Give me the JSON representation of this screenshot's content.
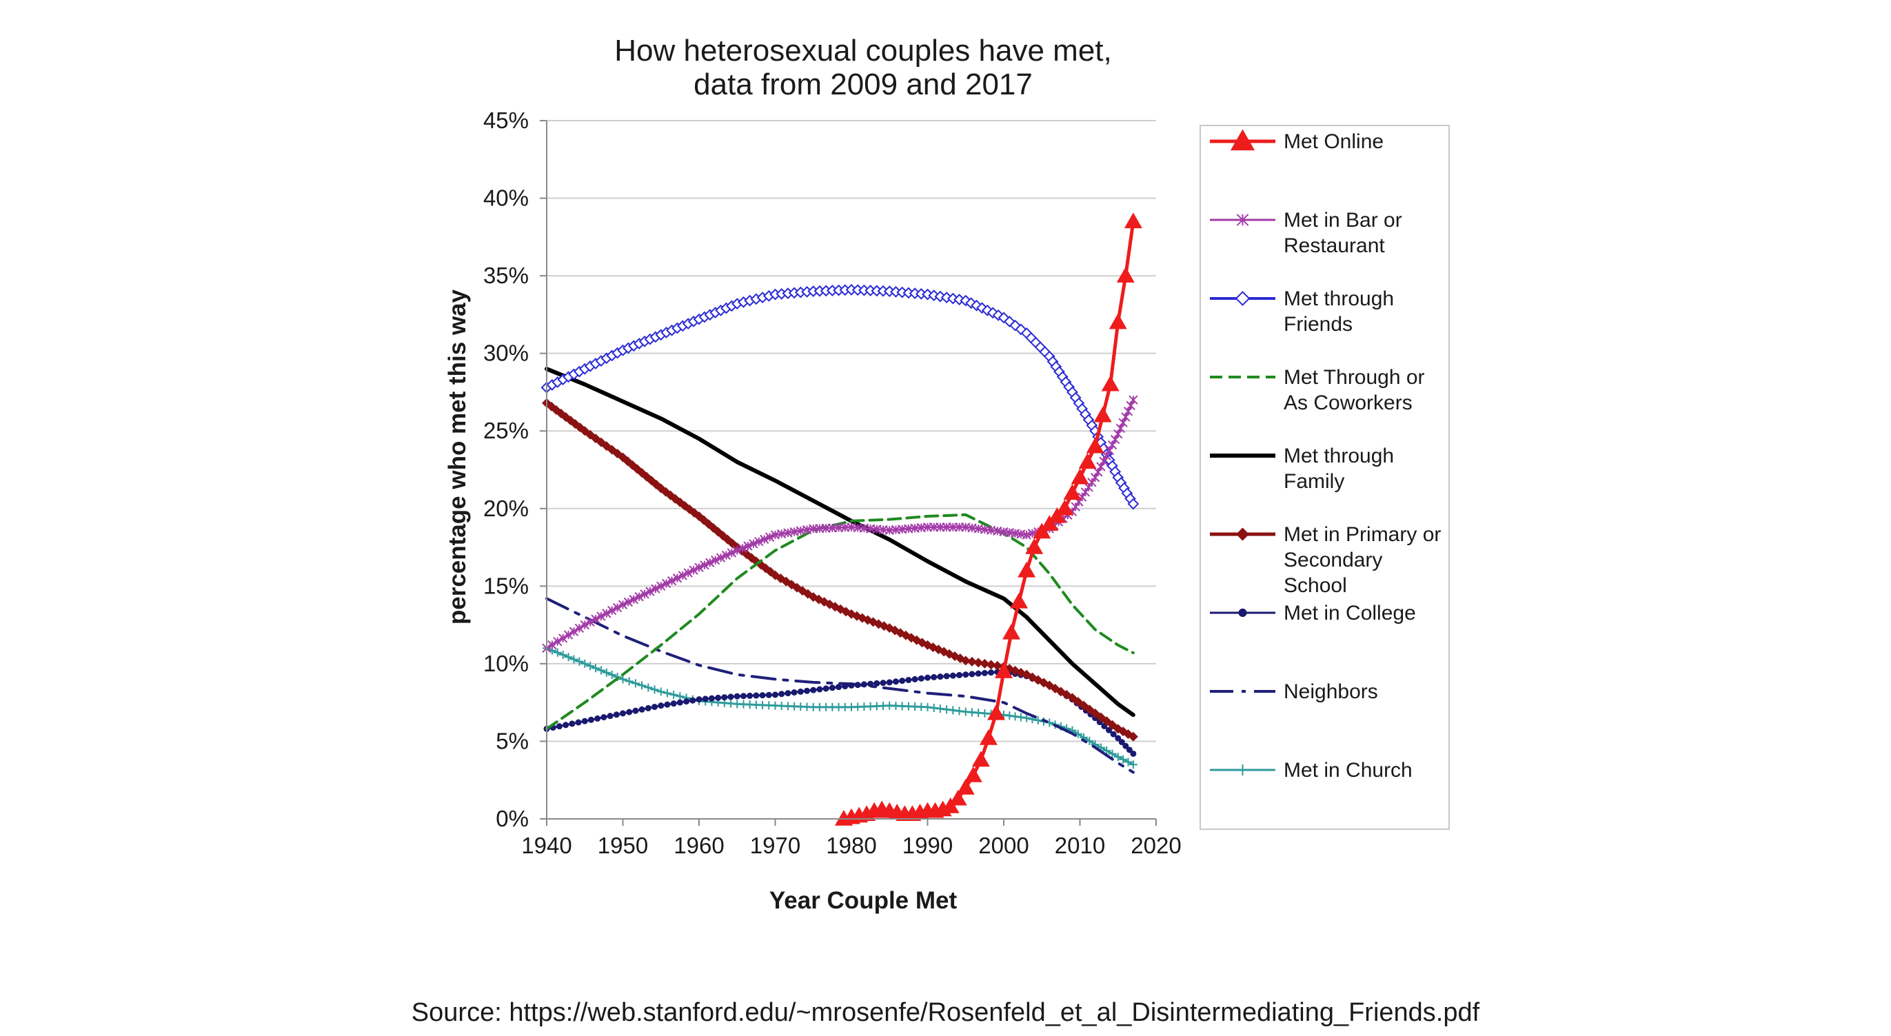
{
  "chart_data": {
    "type": "line",
    "title": [
      "How heterosexual couples have met,",
      "data from 2009 and 2017"
    ],
    "xlabel": "Year Couple Met",
    "ylabel": "percentage who met this way",
    "xlim": [
      1940,
      2020
    ],
    "ylim": [
      0,
      45
    ],
    "xticks": [
      1940,
      1950,
      1960,
      1970,
      1980,
      1990,
      2000,
      2010,
      2020
    ],
    "xtick_labels": [
      "1940",
      "1950",
      "1960",
      "1970",
      "1980",
      "1990",
      "2000",
      "2010",
      "2020"
    ],
    "yticks": [
      0,
      5,
      10,
      15,
      20,
      25,
      30,
      35,
      40,
      45
    ],
    "ytick_labels": [
      "0%",
      "5%",
      "10%",
      "15%",
      "20%",
      "25%",
      "30%",
      "35%",
      "40%",
      "45%"
    ],
    "grid": "horizontal",
    "legend_position": "right",
    "series": [
      {
        "name": "Met Online",
        "legend": [
          "Met Online"
        ],
        "color": "#ee1c1c",
        "style": "solid",
        "marker": "triangle",
        "width": 5,
        "x": [
          1979,
          1980,
          1981,
          1982,
          1983,
          1984,
          1985,
          1986,
          1987,
          1988,
          1989,
          1990,
          1991,
          1992,
          1993,
          1994,
          1995,
          1996,
          1997,
          1998,
          1999,
          2000,
          2001,
          2002,
          2003,
          2004,
          2005,
          2006,
          2007,
          2008,
          2009,
          2010,
          2011,
          2012,
          2013,
          2014,
          2015,
          2016,
          2017
        ],
        "y": [
          0,
          0.1,
          0.2,
          0.3,
          0.5,
          0.6,
          0.5,
          0.4,
          0.3,
          0.3,
          0.4,
          0.5,
          0.5,
          0.6,
          0.8,
          1.3,
          2,
          2.8,
          3.8,
          5.2,
          6.8,
          9.5,
          12,
          14,
          16,
          17.5,
          18.5,
          19,
          19.5,
          20,
          21,
          22,
          23,
          24,
          26,
          28,
          32,
          35,
          38.5
        ]
      },
      {
        "name": "Met in Bar or Restaurant",
        "legend": [
          "Met in Bar or",
          "Restaurant"
        ],
        "color": "#a33ca8",
        "style": "solid",
        "marker": "star",
        "width": 3,
        "x": [
          1940,
          1945,
          1950,
          1955,
          1960,
          1965,
          1970,
          1975,
          1980,
          1985,
          1990,
          1995,
          2000,
          2003,
          2006,
          2009,
          2012,
          2015,
          2017
        ],
        "y": [
          11,
          12.5,
          13.8,
          15,
          16.2,
          17.3,
          18.3,
          18.7,
          18.8,
          18.6,
          18.8,
          18.8,
          18.5,
          18.3,
          18.7,
          19.8,
          22,
          24.8,
          27
        ]
      },
      {
        "name": "Met through Friends",
        "legend": [
          "Met through",
          "Friends"
        ],
        "color": "#2b2bd4",
        "style": "solid",
        "marker": "diamond-open",
        "width": 4,
        "x": [
          1940,
          1945,
          1950,
          1955,
          1960,
          1965,
          1970,
          1975,
          1980,
          1985,
          1990,
          1995,
          2000,
          2003,
          2006,
          2009,
          2012,
          2015,
          2017
        ],
        "y": [
          27.8,
          29,
          30.2,
          31.2,
          32.2,
          33.2,
          33.8,
          34,
          34.1,
          34,
          33.8,
          33.4,
          32.3,
          31.3,
          29.8,
          27.5,
          25,
          22,
          20.3
        ]
      },
      {
        "name": "Met Through or As Coworkers",
        "legend": [
          "Met Through or",
          "As Coworkers"
        ],
        "color": "#1f8a1f",
        "style": "dashed",
        "marker": "none",
        "width": 4,
        "x": [
          1940,
          1945,
          1950,
          1955,
          1960,
          1965,
          1970,
          1975,
          1980,
          1985,
          1990,
          1995,
          2000,
          2003,
          2006,
          2009,
          2012,
          2015,
          2017
        ],
        "y": [
          5.8,
          7.5,
          9.3,
          11.2,
          13.2,
          15.5,
          17.3,
          18.6,
          19.2,
          19.3,
          19.5,
          19.6,
          18.4,
          17.5,
          15.8,
          13.8,
          12.2,
          11.2,
          10.7
        ]
      },
      {
        "name": "Met through Family",
        "legend": [
          "Met through",
          "Family"
        ],
        "color": "#000000",
        "style": "solid",
        "marker": "none",
        "width": 6,
        "x": [
          1940,
          1945,
          1950,
          1955,
          1960,
          1965,
          1970,
          1975,
          1980,
          1985,
          1990,
          1995,
          2000,
          2003,
          2006,
          2009,
          2012,
          2015,
          2017
        ],
        "y": [
          29,
          28,
          26.9,
          25.8,
          24.5,
          23,
          21.8,
          20.5,
          19.2,
          18,
          16.6,
          15.3,
          14.2,
          13,
          11.5,
          10,
          8.7,
          7.4,
          6.7
        ]
      },
      {
        "name": "Met in Primary or Secondary School",
        "legend": [
          "Met in Primary or",
          "Secondary",
          "School"
        ],
        "color": "#8b1212",
        "style": "solid",
        "marker": "diamond",
        "width": 5,
        "x": [
          1940,
          1945,
          1950,
          1955,
          1960,
          1965,
          1970,
          1975,
          1980,
          1985,
          1990,
          1995,
          2000,
          2003,
          2006,
          2009,
          2012,
          2015,
          2017
        ],
        "y": [
          26.8,
          25,
          23.3,
          21.3,
          19.5,
          17.5,
          15.7,
          14.3,
          13.2,
          12.3,
          11.2,
          10.2,
          9.8,
          9.3,
          8.6,
          7.8,
          6.8,
          5.8,
          5.3
        ]
      },
      {
        "name": "Met in College",
        "legend": [
          "Met in College"
        ],
        "color": "#191970",
        "style": "solid",
        "marker": "dot",
        "width": 3,
        "x": [
          1940,
          1945,
          1950,
          1955,
          1960,
          1965,
          1970,
          1975,
          1980,
          1985,
          1990,
          1995,
          2000,
          2003,
          2006,
          2009,
          2012,
          2015,
          2017
        ],
        "y": [
          5.8,
          6.3,
          6.8,
          7.3,
          7.7,
          7.9,
          8,
          8.3,
          8.6,
          8.8,
          9.1,
          9.3,
          9.5,
          9.2,
          8.6,
          7.7,
          6.5,
          5.2,
          4.2
        ]
      },
      {
        "name": "Neighbors",
        "legend": [
          "Neighbors"
        ],
        "color": "#1f1f7a",
        "style": "dashdot",
        "marker": "none",
        "width": 4,
        "x": [
          1940,
          1945,
          1950,
          1955,
          1960,
          1965,
          1970,
          1975,
          1980,
          1985,
          1990,
          1995,
          2000,
          2003,
          2006,
          2009,
          2012,
          2015,
          2017
        ],
        "y": [
          14.2,
          13,
          11.8,
          10.8,
          9.9,
          9.3,
          9,
          8.8,
          8.7,
          8.4,
          8.1,
          7.9,
          7.5,
          6.8,
          6.2,
          5.5,
          4.6,
          3.6,
          3
        ]
      },
      {
        "name": "Met in Church",
        "legend": [
          "Met in Church"
        ],
        "color": "#2e9b9b",
        "style": "solid",
        "marker": "plus",
        "width": 3,
        "x": [
          1940,
          1945,
          1950,
          1955,
          1960,
          1965,
          1970,
          1975,
          1980,
          1985,
          1990,
          1995,
          2000,
          2003,
          2006,
          2009,
          2012,
          2015,
          2017
        ],
        "y": [
          11,
          10,
          9,
          8.2,
          7.6,
          7.4,
          7.3,
          7.2,
          7.2,
          7.3,
          7.2,
          6.9,
          6.7,
          6.5,
          6.2,
          5.7,
          4.8,
          4,
          3.5
        ]
      }
    ]
  },
  "footer": {
    "source": "Source: https://web.stanford.edu/~mrosenfe/Rosenfeld_et_al_Disintermediating_Friends.pdf"
  }
}
